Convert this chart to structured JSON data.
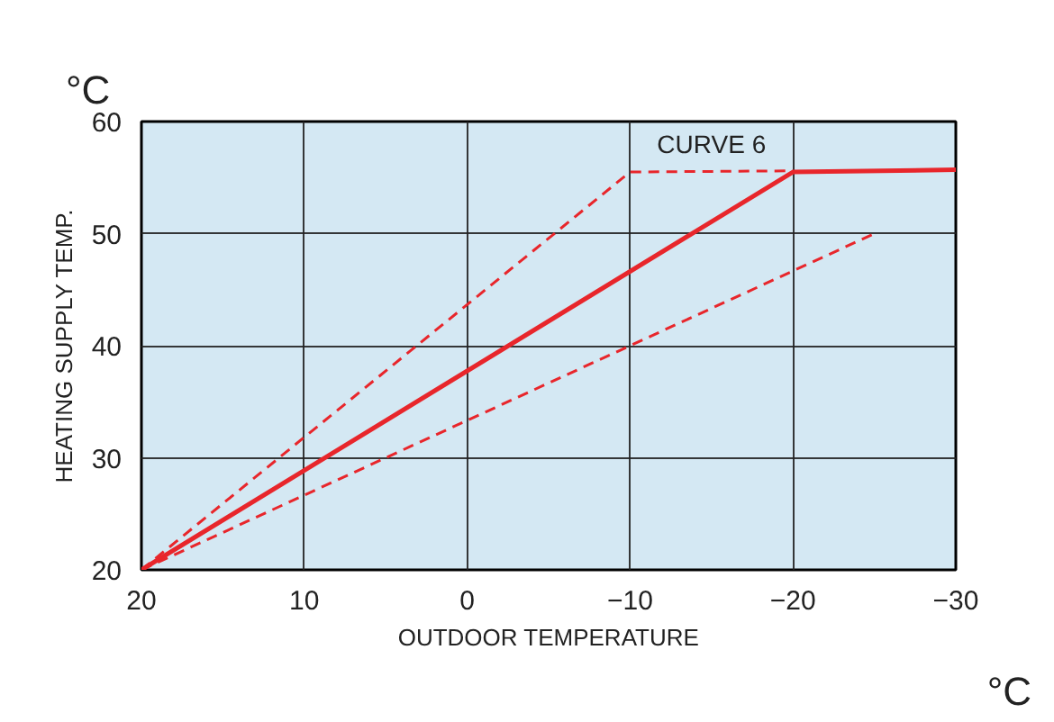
{
  "chart_data": {
    "type": "line",
    "xlabel": "OUTDOOR TEMPERATURE",
    "ylabel": "HEATING SUPPLY TEMP.",
    "xlim": [
      20,
      -30
    ],
    "ylim": [
      20,
      60
    ],
    "xticks": [
      20,
      10,
      0,
      -10,
      -20,
      -30
    ],
    "yticks": [
      20,
      30,
      40,
      50,
      60
    ],
    "grid": true,
    "marker": "none",
    "series": [
      {
        "x": [
          20,
          -20,
          -30
        ],
        "values": [
          20,
          55.5,
          55.7
        ],
        "color": "#e8262b",
        "line_style": "solid"
      },
      {
        "x": [
          20,
          -10,
          -20
        ],
        "values": [
          20,
          55.5,
          55.6
        ],
        "color": "#e8262b",
        "line_style": "dashed"
      },
      {
        "x": [
          20,
          -25
        ],
        "values": [
          20,
          50
        ],
        "color": "#e8262b",
        "line_style": "dashed"
      }
    ],
    "annotations": [
      "CURVE 6",
      "°C",
      "°C"
    ]
  }
}
